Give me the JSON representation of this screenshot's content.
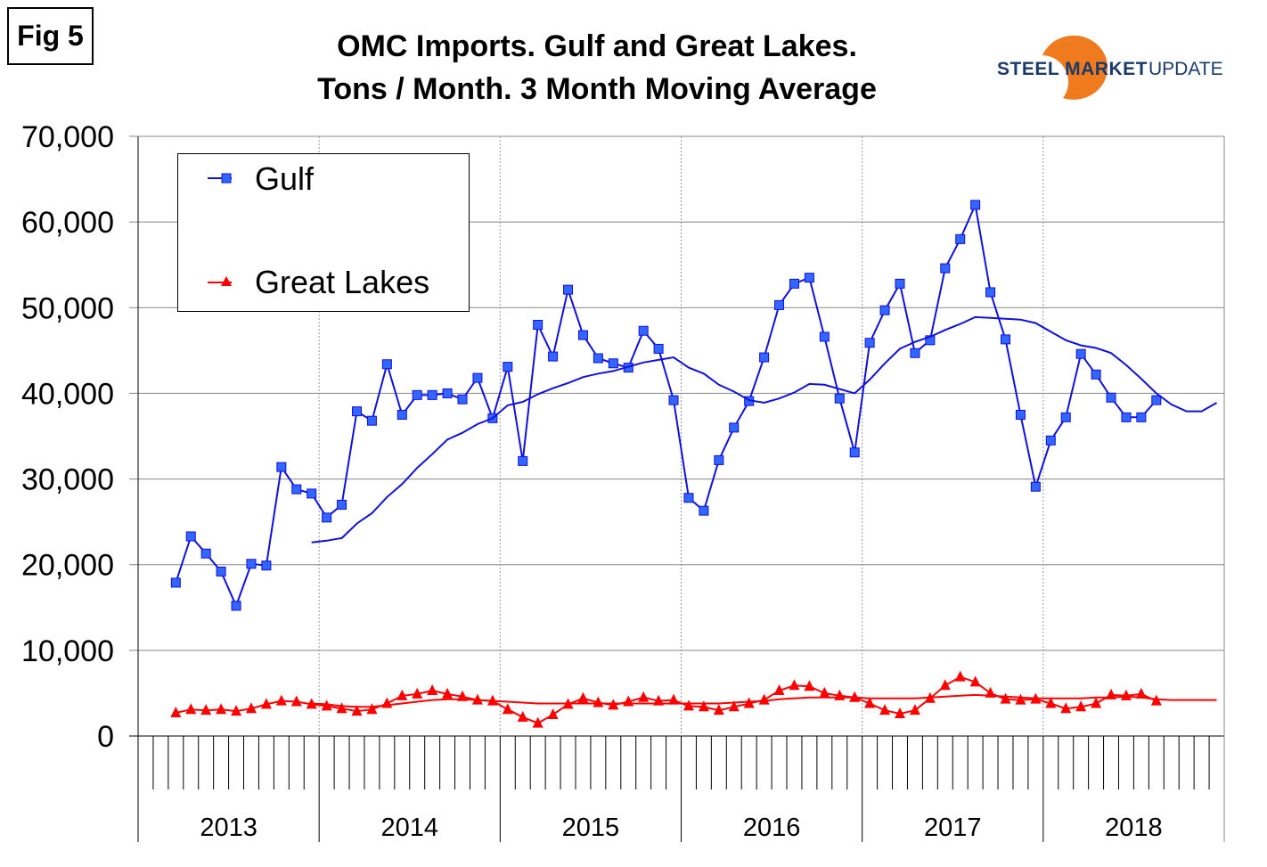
{
  "figure_label": "Fig 5",
  "logo": {
    "text_bold": "STEEL MARKET",
    "text_light": "UPDATE",
    "colors": {
      "text": "#1a3a6b",
      "swoosh": "#f07a1e"
    }
  },
  "chart_data": {
    "type": "line",
    "title": [
      "OMC Imports. Gulf and Great Lakes.",
      "Tons / Month. 3 Month Moving Average"
    ],
    "xlabel": "",
    "ylabel": "",
    "ylim": [
      0,
      70000
    ],
    "yticks": [
      "0",
      "10,000",
      "20,000",
      "30,000",
      "40,000",
      "50,000",
      "60,000",
      "70,000"
    ],
    "xrange": [
      "2013-01",
      "2018-12"
    ],
    "xtick_labels": [
      "2013",
      "2014",
      "2015",
      "2016",
      "2017",
      "2018"
    ],
    "grid": {
      "horizontal": true,
      "vertical_years": "dotted"
    },
    "legend": {
      "placement": "top-left",
      "entries": [
        "Gulf",
        "Great Lakes"
      ]
    },
    "series": [
      {
        "name": "Gulf",
        "color": "#1010e0",
        "marker": "square",
        "marker_color": "#3366ff",
        "start": "2013-03",
        "values": [
          17900,
          23300,
          21300,
          19200,
          15200,
          20100,
          19900,
          31400,
          28800,
          28300,
          25500,
          27000,
          37900,
          36800,
          43400,
          37500,
          39800,
          39800,
          40000,
          39300,
          41800,
          37100,
          43100,
          32100,
          48000,
          44300,
          52100,
          46800,
          44100,
          43500,
          43000,
          47300,
          45200,
          39200,
          27800,
          26300,
          32200,
          36000,
          39100,
          44200,
          50300,
          52800,
          53500,
          46600,
          39400,
          33100,
          45900,
          49700,
          52800,
          44700,
          46200,
          54600,
          58000,
          62000,
          51800,
          46300,
          37500,
          29100,
          34500,
          37200,
          44600,
          42200,
          39500,
          37200,
          37200,
          39200
        ]
      },
      {
        "name": "Great Lakes",
        "color": "#ff0000",
        "marker": "triangle",
        "start": "2013-03",
        "values": [
          2700,
          3100,
          3000,
          3100,
          2900,
          3200,
          3700,
          4100,
          4000,
          3700,
          3500,
          3200,
          2900,
          3100,
          3800,
          4700,
          4900,
          5300,
          4900,
          4600,
          4200,
          4100,
          3100,
          2200,
          1500,
          2500,
          3700,
          4400,
          3900,
          3600,
          4000,
          4500,
          4100,
          4200,
          3500,
          3400,
          3000,
          3400,
          3800,
          4200,
          5300,
          5900,
          5800,
          5000,
          4700,
          4500,
          3800,
          3000,
          2600,
          3000,
          4400,
          5900,
          6900,
          6300,
          5000,
          4300,
          4200,
          4300,
          3800,
          3200,
          3400,
          3800,
          4800,
          4700,
          4900,
          4100
        ]
      },
      {
        "trendline_of": "Gulf",
        "color": "#1010e0",
        "start": "2013-12",
        "values": [
          22600,
          22800,
          23100,
          24800,
          26000,
          27900,
          29400,
          31300,
          32900,
          34600,
          35400,
          36400,
          37100,
          38600,
          39000,
          39900,
          40600,
          41200,
          41900,
          42300,
          42600,
          43100,
          43600,
          43900,
          44200,
          43000,
          42300,
          41000,
          40200,
          39200,
          38900,
          39400,
          40100,
          41100,
          41000,
          40500,
          40000,
          41600,
          43500,
          45200,
          46000,
          46600,
          47400,
          48100,
          48900,
          48800,
          48700,
          48600,
          48200,
          47200,
          46200,
          45600,
          45300,
          44700,
          43300,
          41700,
          40000,
          38700,
          37900,
          37900,
          38900
        ]
      },
      {
        "trendline_of": "Great Lakes",
        "color": "#ff0000",
        "start": "2013-12",
        "values": [
          3800,
          3700,
          3500,
          3400,
          3400,
          3600,
          3800,
          4000,
          4200,
          4300,
          4300,
          4200,
          4100,
          4000,
          3900,
          3800,
          3800,
          3800,
          3800,
          3800,
          3800,
          3800,
          3800,
          3800,
          3800,
          3800,
          3800,
          3800,
          3900,
          4000,
          4100,
          4300,
          4400,
          4500,
          4500,
          4500,
          4500,
          4400,
          4400,
          4400,
          4400,
          4500,
          4600,
          4700,
          4800,
          4700,
          4600,
          4500,
          4400,
          4400,
          4400,
          4400,
          4500,
          4500,
          4600,
          4500,
          4300,
          4200,
          4200,
          4200,
          4200
        ]
      }
    ]
  }
}
